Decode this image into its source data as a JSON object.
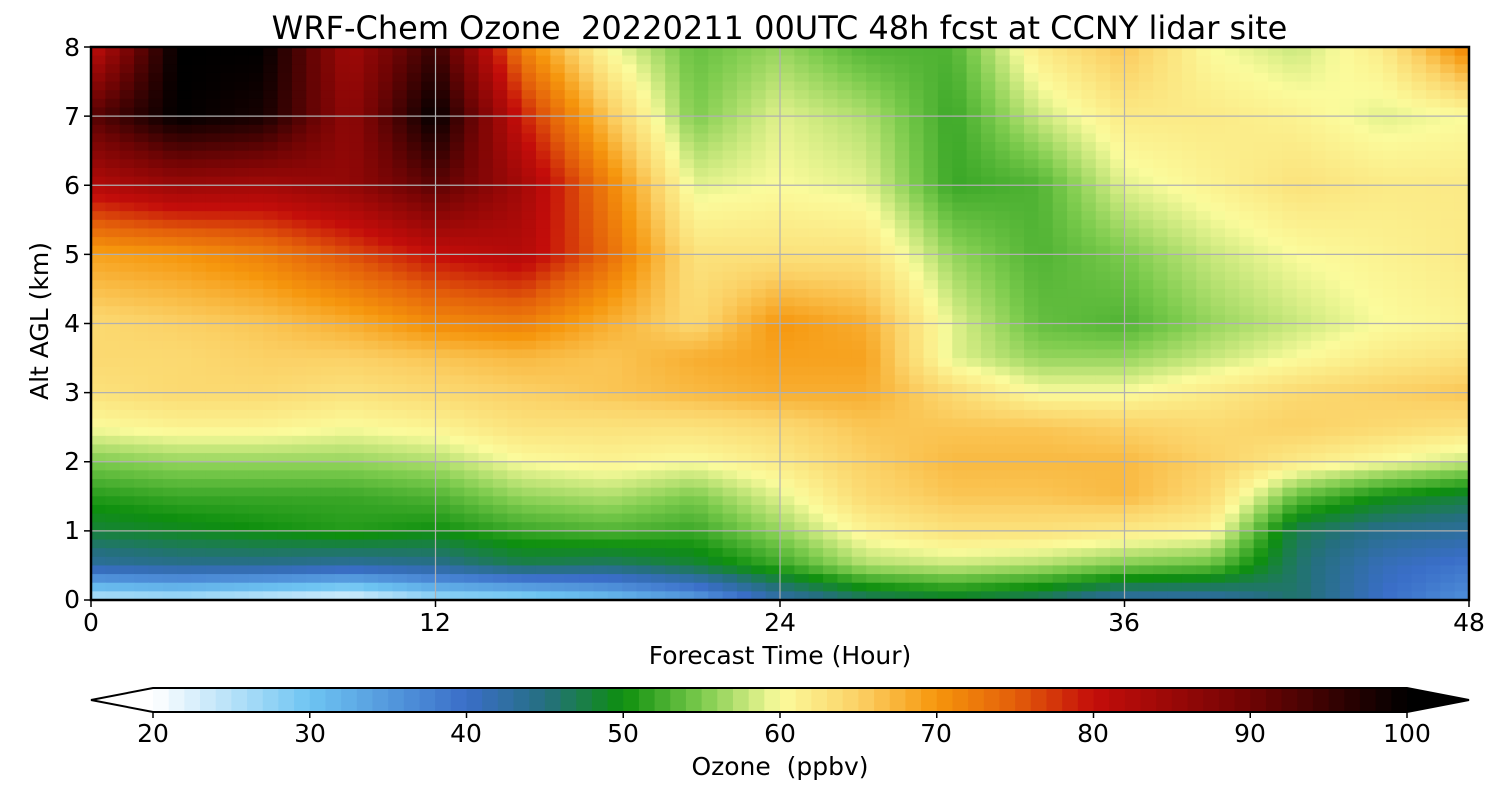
{
  "chart_data": {
    "type": "heatmap",
    "title": "WRF-Chem Ozone  20220211 00UTC 48h fcst at CCNY lidar site",
    "xlabel": "Forecast Time (Hour)",
    "ylabel": "Alt AGL (km)",
    "xlim": [
      0,
      48
    ],
    "ylim": [
      0,
      8
    ],
    "x_ticks": [
      "0",
      "12",
      "24",
      "36",
      "48"
    ],
    "y_ticks": [
      "0",
      "1",
      "2",
      "3",
      "4",
      "5",
      "6",
      "7",
      "8"
    ],
    "grid": true,
    "x_hours": [
      0,
      3,
      6,
      9,
      12,
      15,
      18,
      21,
      24,
      27,
      30,
      33,
      36,
      39,
      42,
      45,
      48
    ],
    "y_km": [
      0,
      0.5,
      1,
      1.5,
      2,
      2.5,
      3,
      3.5,
      4,
      5,
      6,
      7,
      8
    ],
    "z_ppbv": [
      [
        24,
        25,
        23,
        21,
        26,
        27,
        30,
        34,
        42,
        46,
        48,
        46,
        42,
        42,
        46,
        40,
        36
      ],
      [
        43,
        44,
        44,
        43,
        44,
        47,
        46,
        48,
        52,
        57,
        58,
        57,
        55,
        54,
        46,
        41,
        39
      ],
      [
        48,
        49,
        50,
        51,
        50,
        52,
        53,
        52,
        56,
        61,
        63,
        63,
        62,
        61,
        47,
        44,
        43
      ],
      [
        51,
        52,
        52,
        52,
        53,
        56,
        57,
        55,
        59,
        64,
        66,
        66,
        67,
        64,
        54,
        50,
        48
      ],
      [
        55,
        56,
        56,
        56,
        57,
        60,
        61,
        60,
        62,
        65,
        67,
        67,
        67,
        65,
        62,
        60,
        58
      ],
      [
        60,
        61,
        61,
        60,
        61,
        63,
        63,
        63,
        64,
        66,
        66,
        66,
        65,
        64,
        65,
        64,
        63
      ],
      [
        63,
        64,
        64,
        63,
        64,
        65,
        66,
        67,
        68,
        68,
        64,
        60,
        60,
        62,
        64,
        65,
        66
      ],
      [
        64,
        64,
        65,
        65,
        66,
        67,
        66,
        68,
        69,
        69,
        59,
        56,
        56,
        58,
        60,
        62,
        63
      ],
      [
        64,
        65,
        66,
        68,
        71,
        72,
        68,
        64,
        70,
        68,
        59,
        54,
        53,
        56,
        58,
        60,
        61
      ],
      [
        69,
        70,
        72,
        76,
        80,
        82,
        74,
        63,
        63,
        63,
        56,
        53,
        55,
        58,
        60,
        61,
        62
      ],
      [
        82,
        85,
        84,
        86,
        92,
        84,
        72,
        59,
        60,
        59,
        52,
        53,
        59,
        61,
        63,
        62,
        62
      ],
      [
        92,
        100,
        98,
        86,
        100,
        79,
        66,
        55,
        59,
        57,
        52,
        58,
        62,
        62,
        61,
        59,
        60
      ],
      [
        80,
        100,
        100,
        84,
        95,
        72,
        60,
        54,
        56,
        53,
        53,
        62,
        66,
        60,
        58,
        62,
        72
      ]
    ],
    "colorbar": {
      "label": "Ozone  (ppbv)",
      "min": 20,
      "max": 100,
      "ticks": [
        "20",
        "30",
        "40",
        "50",
        "60",
        "70",
        "80",
        "90",
        "100"
      ],
      "extend": "both"
    },
    "colormap_stops": [
      {
        "v": 20,
        "c": "#ffffff"
      },
      {
        "v": 30,
        "c": "#6ec4f2"
      },
      {
        "v": 40,
        "c": "#3a6ec8"
      },
      {
        "v": 45,
        "c": "#256f80"
      },
      {
        "v": 50,
        "c": "#0e8f0e"
      },
      {
        "v": 55,
        "c": "#7ccb4d"
      },
      {
        "v": 60,
        "c": "#fbfb9c"
      },
      {
        "v": 65,
        "c": "#fbd166"
      },
      {
        "v": 70,
        "c": "#f6960c"
      },
      {
        "v": 75,
        "c": "#e35e0a"
      },
      {
        "v": 80,
        "c": "#c40d0a"
      },
      {
        "v": 90,
        "c": "#700404"
      },
      {
        "v": 100,
        "c": "#000000"
      }
    ]
  }
}
